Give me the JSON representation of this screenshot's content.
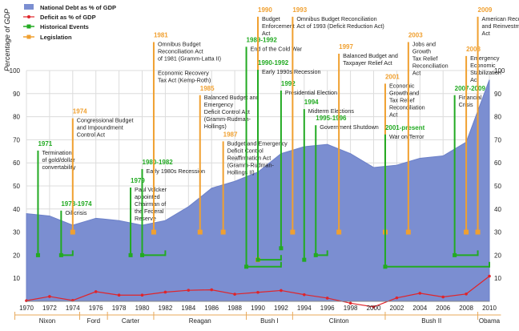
{
  "chart_data": {
    "type": "area",
    "ylabel": "Percentage of GDP",
    "ylim": [
      0,
      100
    ],
    "xlim": [
      1970,
      2010
    ],
    "x_ticks": [
      1970,
      1972,
      1974,
      1976,
      1978,
      1980,
      1982,
      1984,
      1986,
      1988,
      1990,
      1992,
      1994,
      1996,
      1998,
      2000,
      2002,
      2004,
      2006,
      2008,
      2010
    ],
    "y_ticks": [
      10,
      20,
      30,
      40,
      50,
      60,
      70,
      80,
      90,
      100
    ],
    "grid": true,
    "legend_position": "top-left",
    "legend": [
      {
        "label": "National Debt as % of GDP",
        "kind": "area"
      },
      {
        "label": "Deficit as % of GDP",
        "kind": "line"
      },
      {
        "label": "Historical Events",
        "kind": "event"
      },
      {
        "label": "Legislation",
        "kind": "legislation"
      }
    ],
    "series": [
      {
        "name": "National Debt as % of GDP",
        "type": "area",
        "x": [
          1970,
          1972,
          1974,
          1976,
          1978,
          1980,
          1982,
          1984,
          1986,
          1988,
          1990,
          1992,
          1994,
          1996,
          1998,
          2000,
          2002,
          2004,
          2006,
          2008,
          2010
        ],
        "values": [
          38,
          37,
          33,
          36,
          35,
          33,
          35,
          41,
          49,
          52,
          56,
          64,
          67,
          68,
          64,
          58,
          59,
          62,
          63,
          69,
          96
        ]
      },
      {
        "name": "Deficit as % of GDP",
        "type": "line",
        "x": [
          1970,
          1972,
          1974,
          1976,
          1978,
          1980,
          1982,
          1984,
          1986,
          1988,
          1990,
          1992,
          1994,
          1996,
          1998,
          2000,
          2002,
          2004,
          2006,
          2008,
          2010
        ],
        "values": [
          0.3,
          2.1,
          0.4,
          4.2,
          2.7,
          2.7,
          4.0,
          4.8,
          5.0,
          3.1,
          3.9,
          4.7,
          2.9,
          1.4,
          -0.8,
          -2.4,
          1.5,
          3.5,
          1.9,
          3.2,
          10.9
        ]
      }
    ],
    "presidents": [
      {
        "name": "Nixon",
        "start": 1969.0,
        "end": 1974.6
      },
      {
        "name": "Ford",
        "start": 1974.6,
        "end": 1977.0
      },
      {
        "name": "Carter",
        "start": 1977.0,
        "end": 1981.0
      },
      {
        "name": "Reagan",
        "start": 1981.0,
        "end": 1989.0
      },
      {
        "name": "Bush I",
        "start": 1989.0,
        "end": 1993.0
      },
      {
        "name": "Clinton",
        "start": 1993.0,
        "end": 2001.0
      },
      {
        "name": "Bush II",
        "start": 2001.0,
        "end": 2009.0
      },
      {
        "name": "Obama",
        "start": 2009.0,
        "end": 2011.0
      }
    ],
    "annotations": [
      {
        "kind": "event",
        "year_label": "1971",
        "lines": [
          "Termination",
          "of gold/dollar",
          "convertability"
        ],
        "x": 1971,
        "y_top": 66,
        "y_bottom": 20
      },
      {
        "kind": "event",
        "year_label": "1973-1974",
        "lines": [
          "Oil crisis"
        ],
        "x": 1973,
        "x_end": 1974,
        "y_top": 40,
        "y_bottom": 20
      },
      {
        "kind": "legislation",
        "year_label": "1974",
        "lines": [
          "Congressional Budget",
          "and Impoundment",
          "Control Act"
        ],
        "x": 1974,
        "y_top": 80,
        "y_bottom": 30
      },
      {
        "kind": "event",
        "year_label": "1979",
        "lines": [
          "Paul Volcker",
          "appointed",
          "Chairman of",
          "the Federal",
          "Reserve"
        ],
        "x": 1979,
        "y_top": 50,
        "y_bottom": 20
      },
      {
        "kind": "event",
        "year_label": "1980-1982",
        "lines": [
          "Early 1980s Recession"
        ],
        "x": 1980,
        "x_end": 1982,
        "y_top": 58,
        "y_bottom": 20
      },
      {
        "kind": "legislation",
        "year_label": "1981",
        "lines": [
          "Omnibus Budget",
          "Reconciliation Act",
          "of 1981 (Gramm-Latta II)",
          "",
          "Economic Recovery",
          "Tax Act (Kemp-Roth)"
        ],
        "x": 1981,
        "y_top": 113,
        "y_bottom": 30
      },
      {
        "kind": "legislation",
        "year_label": "1985",
        "lines": [
          "Balanced Budget and",
          "Emergency",
          "Deficit Control Act",
          "(Gramm-Rudman-",
          "Hollings)"
        ],
        "x": 1985,
        "y_top": 90,
        "y_bottom": 30
      },
      {
        "kind": "legislation",
        "year_label": "1987",
        "lines": [
          "Budget and Emergency",
          "Deficit Control",
          "Reaffirmation Act",
          "(Gramm-Rudman-",
          "Hollings II)"
        ],
        "x": 1987,
        "y_top": 70,
        "y_bottom": 30
      },
      {
        "kind": "event",
        "year_label": "1989-1992",
        "lines": [
          "End of the Cold War"
        ],
        "x": 1989,
        "x_end": 1992,
        "y_top": 111,
        "y_bottom": 15
      },
      {
        "kind": "legislation",
        "year_label": "1990",
        "lines": [
          "Budget",
          "Enforcement",
          "Act"
        ],
        "x": 1990,
        "y_top": 124,
        "y_bottom": 18
      },
      {
        "kind": "event",
        "year_label": "1990-1992",
        "lines": [
          "Early 1990s Recession"
        ],
        "x": 1990,
        "x_end": 1992,
        "y_top": 101,
        "y_bottom": 18
      },
      {
        "kind": "event",
        "year_label": "1992",
        "lines": [
          "Presidential Election"
        ],
        "x": 1992,
        "y_top": 92,
        "y_bottom": 23
      },
      {
        "kind": "legislation",
        "year_label": "1993",
        "lines": [
          "Omnibus Budget Reconciliation",
          "Act of 1993 (Deficit Reduction Act)"
        ],
        "x": 1993,
        "y_top": 124,
        "y_bottom": 30
      },
      {
        "kind": "event",
        "year_label": "1994",
        "lines": [
          "Midterm Elections"
        ],
        "x": 1994,
        "y_top": 84,
        "y_bottom": 18
      },
      {
        "kind": "event",
        "year_label": "1995-1996",
        "lines": [
          "Government Shutdown"
        ],
        "x": 1995,
        "x_end": 1996,
        "y_top": 77,
        "y_bottom": 20
      },
      {
        "kind": "legislation",
        "year_label": "1997",
        "lines": [
          "Balanced Budget and",
          "Taxpayer Relief Act"
        ],
        "x": 1997,
        "y_top": 108,
        "y_bottom": 30
      },
      {
        "kind": "legislation",
        "year_label": "2001",
        "lines": [
          "Economic",
          "Growth and",
          "Tax Relief",
          "Reconciliation",
          "Act"
        ],
        "x": 2001,
        "y_top": 95,
        "y_bottom": 30
      },
      {
        "kind": "event",
        "year_label": "2001-present",
        "lines": [
          "War on Terror"
        ],
        "x": 2001,
        "x_end": 2010,
        "y_top": 73,
        "y_bottom": 15
      },
      {
        "kind": "legislation",
        "year_label": "2003",
        "lines": [
          "Jobs and",
          "Growth",
          "Tax Relief",
          "Reconciliation",
          "Act"
        ],
        "x": 2003,
        "y_top": 113,
        "y_bottom": 30
      },
      {
        "kind": "event",
        "year_label": "2007-2009",
        "lines": [
          "Financial",
          "Crisis"
        ],
        "x": 2007,
        "x_end": 2009,
        "y_top": 90,
        "y_bottom": 20
      },
      {
        "kind": "legislation",
        "year_label": "2008",
        "lines": [
          "Emergency",
          "Economic",
          "Stabilization",
          "Act"
        ],
        "x": 2008,
        "y_top": 107,
        "y_bottom": 30
      },
      {
        "kind": "legislation",
        "year_label": "2009",
        "lines": [
          "American Recovery",
          "and Reinvestment",
          "Act"
        ],
        "x": 2009,
        "y_top": 124,
        "y_bottom": 30
      }
    ]
  },
  "colors": {
    "debt_fill": "#7b8ed1",
    "debt_stroke": "#6c80c8",
    "deficit_line": "#e0242a",
    "event": "#22aa22",
    "legislation": "#f0a030",
    "president_line": "#e8a85a",
    "grid": "#dcdcdc",
    "axis_text": "#222222",
    "annotation_text": "#222222"
  }
}
